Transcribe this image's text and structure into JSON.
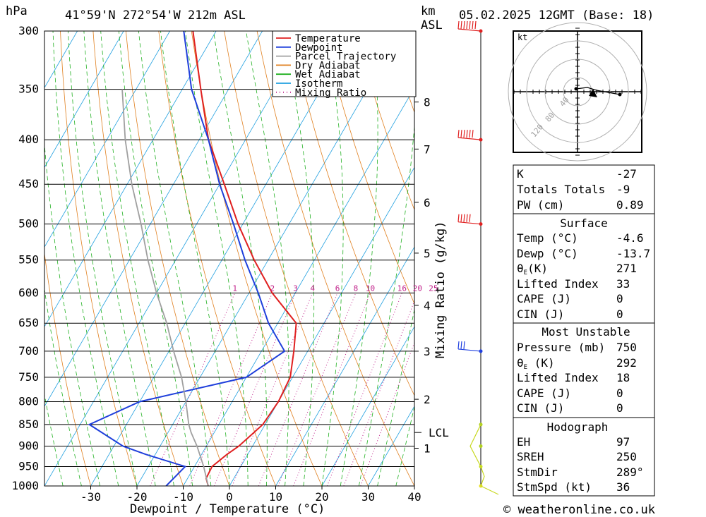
{
  "header": {
    "hpa_label": "hPa",
    "location": "41°59'N  272°54'W  212m  ASL",
    "km_label": "km",
    "asl_label": "ASL",
    "datetime": "05.02.2025  12GMT  (Base: 18)"
  },
  "legend": {
    "items": [
      {
        "label": "Temperature",
        "color": "#e02020",
        "style": "solid"
      },
      {
        "label": "Dewpoint",
        "color": "#1f3fdb",
        "style": "solid"
      },
      {
        "label": "Parcel Trajectory",
        "color": "#a0a0a0",
        "style": "solid"
      },
      {
        "label": "Dry Adiabat",
        "color": "#e08020",
        "style": "solid"
      },
      {
        "label": "Wet Adiabat",
        "color": "#20b020",
        "style": "solid"
      },
      {
        "label": "Isotherm",
        "color": "#20a0e0",
        "style": "solid"
      },
      {
        "label": "Mixing Ratio",
        "color": "#c0208a",
        "style": "dotted"
      }
    ]
  },
  "chart_data": {
    "type": "line",
    "subtype": "skew-T log-P diagram",
    "xlabel": "Dewpoint / Temperature (°C)",
    "ylabel": "hPa",
    "xticks": [
      -30,
      -20,
      -10,
      0,
      10,
      20,
      30,
      40
    ],
    "xlim": [
      -40,
      40
    ],
    "pressure_levels": [
      300,
      350,
      400,
      450,
      500,
      550,
      600,
      650,
      700,
      750,
      800,
      850,
      900,
      950,
      1000
    ],
    "ylim": [
      1000,
      300
    ],
    "km_axis": {
      "label": "km ASL",
      "ticks": [
        {
          "label": "8",
          "p": 362
        },
        {
          "label": "7",
          "p": 410
        },
        {
          "label": "6",
          "p": 472
        },
        {
          "label": "5",
          "p": 540
        },
        {
          "label": "4",
          "p": 620
        },
        {
          "label": "3",
          "p": 700
        },
        {
          "label": "2",
          "p": 795
        },
        {
          "label": "1",
          "p": 905
        }
      ],
      "lcl_label": "LCL",
      "lcl_p": 868
    },
    "mixing_ratio": {
      "axis_label": "Mixing Ratio (g/kg)",
      "labels": [
        "1",
        "2",
        "3",
        "4",
        "6",
        "8",
        "10",
        "16",
        "20",
        "25"
      ],
      "values": [
        1,
        2,
        3,
        4,
        6,
        8,
        10,
        16,
        20,
        25
      ]
    },
    "series": [
      {
        "name": "Temperature",
        "color": "#e02020",
        "points": [
          [
            1000,
            -4.6
          ],
          [
            980,
            -6
          ],
          [
            950,
            -6.2
          ],
          [
            920,
            -4.5
          ],
          [
            900,
            -3
          ],
          [
            870,
            -1.5
          ],
          [
            850,
            -0.5
          ],
          [
            800,
            0
          ],
          [
            750,
            -0.5
          ],
          [
            700,
            -3
          ],
          [
            650,
            -6
          ],
          [
            600,
            -15
          ],
          [
            550,
            -23
          ],
          [
            500,
            -31
          ],
          [
            450,
            -39
          ],
          [
            400,
            -48
          ],
          [
            350,
            -56
          ],
          [
            300,
            -65
          ]
        ]
      },
      {
        "name": "Dewpoint",
        "color": "#1f3fdb",
        "points": [
          [
            1000,
            -13.7
          ],
          [
            950,
            -12
          ],
          [
            920,
            -22
          ],
          [
            900,
            -28
          ],
          [
            850,
            -38
          ],
          [
            800,
            -30
          ],
          [
            750,
            -10
          ],
          [
            700,
            -5
          ],
          [
            650,
            -12
          ],
          [
            600,
            -18
          ],
          [
            550,
            -25
          ],
          [
            500,
            -32
          ],
          [
            450,
            -40
          ],
          [
            400,
            -48
          ],
          [
            350,
            -58
          ],
          [
            300,
            -67
          ]
        ]
      },
      {
        "name": "Parcel Trajectory",
        "color": "#a0a0a0",
        "points": [
          [
            1000,
            -4.6
          ],
          [
            950,
            -8
          ],
          [
            900,
            -12
          ],
          [
            868,
            -15
          ],
          [
            850,
            -16.5
          ],
          [
            800,
            -20
          ],
          [
            750,
            -24
          ],
          [
            700,
            -29
          ],
          [
            650,
            -34
          ],
          [
            600,
            -40
          ],
          [
            550,
            -46
          ],
          [
            500,
            -52
          ],
          [
            450,
            -59
          ],
          [
            400,
            -66
          ],
          [
            350,
            -73
          ]
        ]
      }
    ],
    "wind_barbs": [
      {
        "p": 300,
        "speed_kt": 65
      },
      {
        "p": 400,
        "speed_kt": 55
      },
      {
        "p": 500,
        "speed_kt": 45
      },
      {
        "p": 700,
        "speed_kt": 30
      }
    ]
  },
  "hodograph": {
    "unit_label": "kt",
    "ring_labels": [
      "40",
      "80",
      "120"
    ]
  },
  "indices": {
    "k": {
      "label": "K",
      "value": "-27"
    },
    "totals": {
      "label": "Totals Totals",
      "value": "-9"
    },
    "pw": {
      "label": "PW (cm)",
      "value": "0.89"
    },
    "surface": {
      "title": "Surface",
      "temp": {
        "label": "Temp (°C)",
        "value": "-4.6"
      },
      "dewp": {
        "label": "Dewp (°C)",
        "value": "-13.7"
      },
      "theta_e": {
        "label_main": "θ",
        "label_sub": "E",
        "label_rest": "(K)",
        "value": "271"
      },
      "lifted": {
        "label": "Lifted Index",
        "value": "33"
      },
      "cape": {
        "label": "CAPE (J)",
        "value": "0"
      },
      "cin": {
        "label": "CIN (J)",
        "value": "0"
      }
    },
    "most_unstable": {
      "title": "Most Unstable",
      "pressure": {
        "label": "Pressure (mb)",
        "value": "750"
      },
      "theta_e": {
        "label_main": "θ",
        "label_sub": "E",
        "label_rest": " (K)",
        "value": "292"
      },
      "lifted": {
        "label": "Lifted Index",
        "value": "18"
      },
      "cape": {
        "label": "CAPE (J)",
        "value": "0"
      },
      "cin": {
        "label": "CIN (J)",
        "value": "0"
      }
    },
    "hodo_block": {
      "title": "Hodograph",
      "eh": {
        "label": "EH",
        "value": "97"
      },
      "sreh": {
        "label": "SREH",
        "value": "250"
      },
      "stmdir": {
        "label": "StmDir",
        "value": "289°"
      },
      "stmspd": {
        "label": "StmSpd (kt)",
        "value": "36"
      }
    }
  },
  "footer": {
    "copyright": "© weatheronline.co.uk"
  }
}
